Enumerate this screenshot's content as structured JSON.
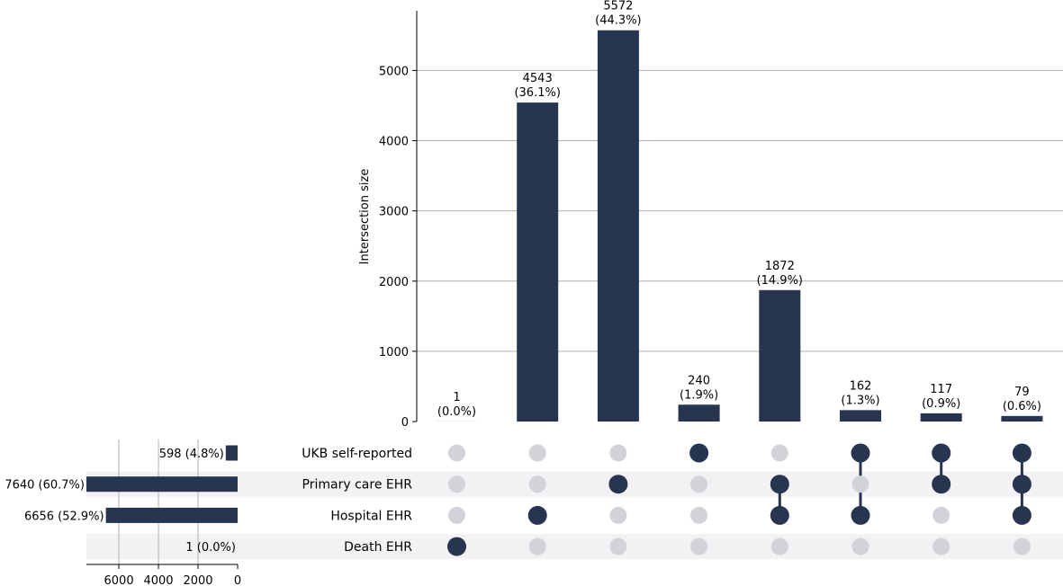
{
  "chart_data": {
    "type": "bar",
    "ylabel": "Intersection size",
    "ylim": [
      0,
      5850
    ],
    "yticks": [
      0,
      1000,
      2000,
      3000,
      4000,
      5000
    ],
    "bar_color": "#273550",
    "inactive_dot_color": "#d1d3d9",
    "stripe_color": "#f2f2f5",
    "grid_color": "#b0b0b0",
    "intersections": [
      {
        "count": 1,
        "label": "1",
        "pct": "(0.0%)",
        "members": [
          3
        ]
      },
      {
        "count": 4543,
        "label": "4543",
        "pct": "(36.1%)",
        "members": [
          2
        ]
      },
      {
        "count": 5572,
        "label": "5572",
        "pct": "(44.3%)",
        "members": [
          1
        ]
      },
      {
        "count": 240,
        "label": "240",
        "pct": "(1.9%)",
        "members": [
          0
        ]
      },
      {
        "count": 1872,
        "label": "1872",
        "pct": "(14.9%)",
        "members": [
          1,
          2
        ]
      },
      {
        "count": 162,
        "label": "162",
        "pct": "(1.3%)",
        "members": [
          0,
          2
        ]
      },
      {
        "count": 117,
        "label": "117",
        "pct": "(0.9%)",
        "members": [
          0,
          1
        ]
      },
      {
        "count": 79,
        "label": "79",
        "pct": "(0.6%)",
        "members": [
          0,
          1,
          2
        ]
      }
    ],
    "sets": [
      {
        "name": "UKB self-reported",
        "size": 598,
        "label": "598 (4.8%)"
      },
      {
        "name": "Primary care EHR",
        "size": 7640,
        "label": "7640 (60.7%)"
      },
      {
        "name": "Hospital EHR",
        "size": 6656,
        "label": "6656 (52.9%)"
      },
      {
        "name": "Death EHR",
        "size": 1,
        "label": "1 (0.0%)"
      }
    ],
    "set_xticks": [
      6000,
      4000,
      2000,
      0
    ],
    "set_xmax": 7640
  }
}
